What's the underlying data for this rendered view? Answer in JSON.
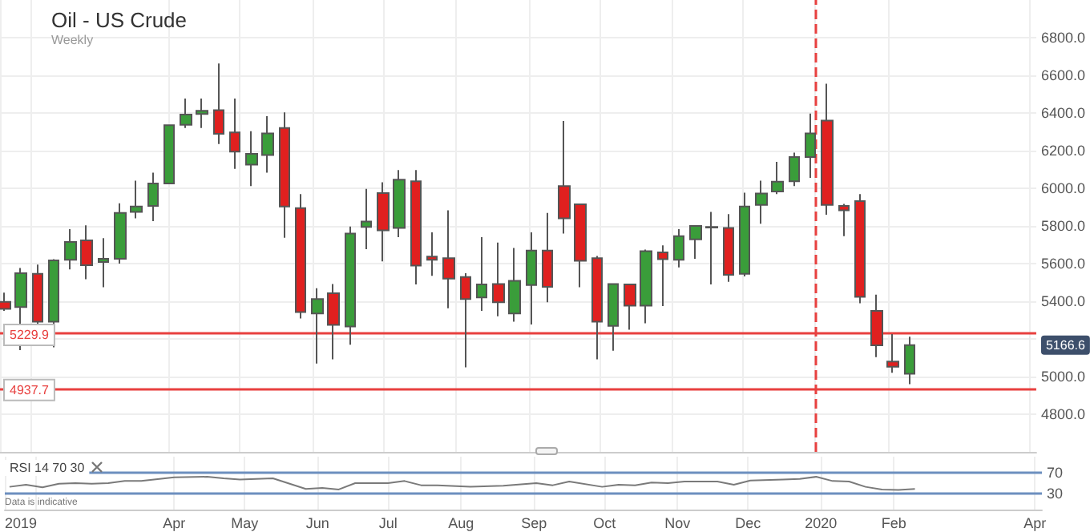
{
  "chart_data": [
    {
      "type": "candlestick",
      "title": "Oil - US Crude",
      "subtitle": "Weekly",
      "x": [
        "2019-01-21",
        "2019-01-28",
        "2019-02-04",
        "2019-02-11",
        "2019-02-18",
        "2019-02-25",
        "2019-03-04",
        "2019-03-11",
        "2019-03-18",
        "2019-03-25",
        "2019-04-01",
        "2019-04-08",
        "2019-04-15",
        "2019-04-22",
        "2019-04-29",
        "2019-05-06",
        "2019-05-13",
        "2019-05-20",
        "2019-05-27",
        "2019-06-03",
        "2019-06-10",
        "2019-06-17",
        "2019-06-24",
        "2019-07-01",
        "2019-07-08",
        "2019-07-15",
        "2019-07-22",
        "2019-07-29",
        "2019-08-05",
        "2019-08-12",
        "2019-08-19",
        "2019-08-26",
        "2019-09-02",
        "2019-09-09",
        "2019-09-16",
        "2019-09-23",
        "2019-09-30",
        "2019-10-07",
        "2019-10-14",
        "2019-10-21",
        "2019-10-28",
        "2019-11-04",
        "2019-11-11",
        "2019-11-18",
        "2019-11-25",
        "2019-12-02",
        "2019-12-09",
        "2019-12-16",
        "2019-12-23",
        "2019-12-30",
        "2020-01-06",
        "2020-01-13",
        "2020-01-20",
        "2020-01-27",
        "2020-02-03",
        "2020-02-10"
      ],
      "ohlc": [
        [
          5397,
          5446,
          5349,
          5360
        ],
        [
          5369,
          5577,
          5140,
          5549
        ],
        [
          5546,
          5595,
          5269,
          5292
        ],
        [
          5292,
          5623,
          5155,
          5617
        ],
        [
          5620,
          5783,
          5569,
          5715
        ],
        [
          5723,
          5803,
          5517,
          5592
        ],
        [
          5609,
          5735,
          5475,
          5626
        ],
        [
          5626,
          5920,
          5600,
          5869
        ],
        [
          5875,
          6040,
          5840,
          5903
        ],
        [
          5906,
          6083,
          5826,
          6026
        ],
        [
          6026,
          6335,
          6026,
          6335
        ],
        [
          6337,
          6477,
          6320,
          6392
        ],
        [
          6395,
          6477,
          6320,
          6412
        ],
        [
          6415,
          6663,
          6235,
          6289
        ],
        [
          6297,
          6477,
          6103,
          6195
        ],
        [
          6126,
          6303,
          6012,
          6183
        ],
        [
          6177,
          6383,
          6083,
          6292
        ],
        [
          6320,
          6403,
          5737,
          5903
        ],
        [
          5895,
          5969,
          5309,
          5343
        ],
        [
          5335,
          5469,
          5069,
          5412
        ],
        [
          5443,
          5492,
          5092,
          5275
        ],
        [
          5266,
          5797,
          5169,
          5760
        ],
        [
          5795,
          5997,
          5677,
          5823
        ],
        [
          5975,
          6032,
          5612,
          5777
        ],
        [
          5789,
          6097,
          5740,
          6046
        ],
        [
          6037,
          6097,
          5489,
          5589
        ],
        [
          5637,
          5766,
          5535,
          5620
        ],
        [
          5629,
          5883,
          5363,
          5520
        ],
        [
          5529,
          5549,
          5049,
          5412
        ],
        [
          5420,
          5740,
          5349,
          5489
        ],
        [
          5492,
          5712,
          5320,
          5395
        ],
        [
          5335,
          5683,
          5292,
          5509
        ],
        [
          5486,
          5766,
          5277,
          5669
        ],
        [
          5669,
          5869,
          5395,
          5477
        ],
        [
          6012,
          6357,
          5760,
          5840
        ],
        [
          5915,
          5915,
          5475,
          5615
        ],
        [
          5629,
          5640,
          5092,
          5292
        ],
        [
          5269,
          5492,
          5137,
          5492
        ],
        [
          5489,
          5489,
          5249,
          5377
        ],
        [
          5377,
          5675,
          5283,
          5666
        ],
        [
          5660,
          5697,
          5375,
          5623
        ],
        [
          5620,
          5783,
          5580,
          5746
        ],
        [
          5729,
          5800,
          5626,
          5800
        ],
        [
          5792,
          5875,
          5489,
          5795
        ],
        [
          5789,
          5863,
          5503,
          5540
        ],
        [
          5546,
          5977,
          5532,
          5903
        ],
        [
          5912,
          6040,
          5812,
          5972
        ],
        [
          5983,
          6140,
          5969,
          6035
        ],
        [
          6037,
          6189,
          6012,
          6166
        ],
        [
          6166,
          6397,
          6055,
          6292
        ],
        [
          6360,
          6555,
          5860,
          5912
        ],
        [
          5906,
          5917,
          5746,
          5883
        ],
        [
          5932,
          5969,
          5389,
          5423
        ],
        [
          5349,
          5435,
          5103,
          5166
        ],
        [
          5080,
          5226,
          5020,
          5052
        ],
        [
          5015,
          5212,
          4960,
          5166.6
        ]
      ],
      "colors": [
        "#e0201f",
        "#3a9d3a",
        "#e0201f",
        "#3a9d3a",
        "#3a9d3a",
        "#e0201f",
        "#3a9d3a",
        "#3a9d3a",
        "#3a9d3a",
        "#3a9d3a",
        "#3a9d3a",
        "#3a9d3a",
        "#3a9d3a",
        "#e0201f",
        "#e0201f",
        "#3a9d3a",
        "#3a9d3a",
        "#e0201f",
        "#e0201f",
        "#3a9d3a",
        "#e0201f",
        "#3a9d3a",
        "#3a9d3a",
        "#e0201f",
        "#3a9d3a",
        "#e0201f",
        "#e0201f",
        "#e0201f",
        "#e0201f",
        "#3a9d3a",
        "#e0201f",
        "#3a9d3a",
        "#3a9d3a",
        "#e0201f",
        "#e0201f",
        "#e0201f",
        "#e0201f",
        "#3a9d3a",
        "#e0201f",
        "#3a9d3a",
        "#e0201f",
        "#3a9d3a",
        "#3a9d3a",
        "#3a9d3a",
        "#e0201f",
        "#3a9d3a",
        "#3a9d3a",
        "#3a9d3a",
        "#3a9d3a",
        "#3a9d3a",
        "#e0201f",
        "#e0201f",
        "#e0201f",
        "#e0201f",
        "#e0201f",
        "#3a9d3a"
      ],
      "xlim": [
        "2019-01-19",
        "2020-04-04"
      ],
      "xticks": [
        "2019-01-19",
        "2019-02-01",
        "2019-04-01",
        "2019-05-01",
        "2019-06-01",
        "2019-07-01",
        "2019-08-01",
        "2019-09-01",
        "2019-10-01",
        "2019-11-01",
        "2019-12-01",
        "2020-01-01",
        "2020-02-01",
        "2020-04-01"
      ],
      "ylim": [
        4600,
        7000
      ],
      "yticks": [
        {
          "value": 4800,
          "label": "4800.0"
        },
        {
          "value": 5000,
          "label": "5000.0"
        },
        {
          "value": 5200,
          "label": null
        },
        {
          "value": 5400,
          "label": "5400.0"
        },
        {
          "value": 5600,
          "label": "5600.0"
        },
        {
          "value": 5800,
          "label": "5800.0"
        },
        {
          "value": 6000,
          "label": "6000.0"
        },
        {
          "value": 6200,
          "label": "6200.0"
        },
        {
          "value": 6400,
          "label": "6400.0"
        },
        {
          "value": 6600,
          "label": "6600.0"
        },
        {
          "value": 6800,
          "label": "6800.0"
        }
      ],
      "tick_labels": "y",
      "grid": true,
      "ref_lines": [
        {
          "axis": "y",
          "value": 5229.9,
          "label": "5229.9",
          "color": "#e8403f"
        },
        {
          "axis": "y",
          "value": 4937.7,
          "label": "4937.7",
          "color": "#e8403f"
        },
        {
          "axis": "x",
          "value": "2020-01-01",
          "color": "#e8403f",
          "line_style": "dashed"
        }
      ],
      "annotations": [
        "5166.6"
      ]
    },
    {
      "type": "line",
      "title": "RSI 14 70 30",
      "x": [
        "2019-01-21",
        "2019-01-28",
        "2019-02-04",
        "2019-02-11",
        "2019-02-18",
        "2019-02-25",
        "2019-03-04",
        "2019-03-11",
        "2019-03-18",
        "2019-04-01",
        "2019-04-15",
        "2019-04-22",
        "2019-04-29",
        "2019-05-13",
        "2019-05-27",
        "2019-06-03",
        "2019-06-10",
        "2019-06-17",
        "2019-07-01",
        "2019-07-08",
        "2019-07-15",
        "2019-07-22",
        "2019-08-05",
        "2019-08-19",
        "2019-09-02",
        "2019-09-09",
        "2019-09-16",
        "2019-09-30",
        "2019-10-07",
        "2019-10-14",
        "2019-10-21",
        "2019-10-28",
        "2019-11-04",
        "2019-11-18",
        "2019-11-25",
        "2019-12-02",
        "2019-12-16",
        "2019-12-23",
        "2019-12-30",
        "2020-01-06",
        "2020-01-13",
        "2020-01-20",
        "2020-01-27",
        "2020-02-03",
        "2020-02-10"
      ],
      "values": [
        43,
        47,
        42,
        49,
        50,
        49,
        50,
        54,
        54,
        61,
        62,
        59,
        57,
        59,
        39,
        41,
        38,
        50,
        50,
        54,
        46,
        46,
        43,
        45,
        50,
        46,
        53,
        43,
        47,
        46,
        51,
        50,
        53,
        53,
        47,
        55,
        57,
        58,
        62,
        54,
        53,
        43,
        38,
        37,
        39
      ],
      "color": "#7a7a7a",
      "marker": "none",
      "xlim": [
        "2019-01-19",
        "2020-04-04"
      ],
      "xticks": [
        {
          "value": "2019-01-19",
          "label": "2019"
        },
        {
          "value": "2019-02-01",
          "label": null
        },
        {
          "value": "2019-04-01",
          "label": "Apr"
        },
        {
          "value": "2019-05-01",
          "label": "May"
        },
        {
          "value": "2019-06-01",
          "label": "Jun"
        },
        {
          "value": "2019-07-01",
          "label": "Jul"
        },
        {
          "value": "2019-08-01",
          "label": "Aug"
        },
        {
          "value": "2019-09-01",
          "label": "Sep"
        },
        {
          "value": "2019-10-01",
          "label": "Oct"
        },
        {
          "value": "2019-11-01",
          "label": "Nov"
        },
        {
          "value": "2019-12-01",
          "label": "Dec"
        },
        {
          "value": "2020-01-01",
          "label": "2020"
        },
        {
          "value": "2020-02-01",
          "label": "Feb"
        },
        {
          "value": "2020-04-01",
          "label": "Apr"
        }
      ],
      "ylim": [
        0,
        100
      ],
      "yticks": [
        30,
        70
      ],
      "grid": "x",
      "ref_lines": [
        {
          "axis": "y",
          "value": 70,
          "color": "#6d8fbf"
        },
        {
          "axis": "y",
          "value": 30,
          "color": "#6d8fbf"
        }
      ],
      "annotations": [
        "Data is indicative"
      ]
    }
  ]
}
